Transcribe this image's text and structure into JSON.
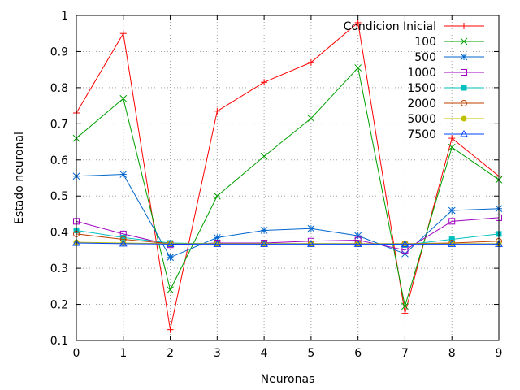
{
  "chart_data": {
    "type": "line",
    "xlabel": "Neuronas",
    "ylabel": "Estado neuronal",
    "x": [
      0,
      1,
      2,
      3,
      4,
      5,
      6,
      7,
      8,
      9
    ],
    "xlim": [
      0,
      9
    ],
    "ylim": [
      0.1,
      1
    ],
    "x_ticks": [
      0,
      1,
      2,
      3,
      4,
      5,
      6,
      7,
      8,
      9
    ],
    "y_ticks": [
      0.1,
      0.2,
      0.3,
      0.4,
      0.5,
      0.6,
      0.7,
      0.8,
      0.9,
      1
    ],
    "grid": true,
    "legend_position": "top-right",
    "series": [
      {
        "name": "Condicion Inicial",
        "color": "#ff0000",
        "marker": "plus",
        "values": [
          0.73,
          0.95,
          0.13,
          0.735,
          0.815,
          0.87,
          0.98,
          0.175,
          0.66,
          0.555
        ]
      },
      {
        "name": "100",
        "color": "#00a000",
        "marker": "cross",
        "values": [
          0.66,
          0.77,
          0.24,
          0.5,
          0.61,
          0.715,
          0.855,
          0.195,
          0.635,
          0.545
        ]
      },
      {
        "name": "500",
        "color": "#0066cc",
        "marker": "star",
        "values": [
          0.555,
          0.56,
          0.33,
          0.385,
          0.405,
          0.41,
          0.39,
          0.34,
          0.46,
          0.465
        ]
      },
      {
        "name": "1000",
        "color": "#a000c0",
        "marker": "square-open",
        "values": [
          0.43,
          0.395,
          0.365,
          0.37,
          0.37,
          0.375,
          0.378,
          0.35,
          0.43,
          0.44
        ]
      },
      {
        "name": "1500",
        "color": "#00c0c0",
        "marker": "square-filled",
        "values": [
          0.405,
          0.385,
          0.37,
          0.368,
          0.368,
          0.368,
          0.368,
          0.365,
          0.38,
          0.395
        ]
      },
      {
        "name": "2000",
        "color": "#c04000",
        "marker": "circle-open",
        "values": [
          0.395,
          0.38,
          0.368,
          0.368,
          0.368,
          0.368,
          0.368,
          0.368,
          0.37,
          0.375
        ]
      },
      {
        "name": "5000",
        "color": "#c0c000",
        "marker": "circle-filled",
        "values": [
          0.372,
          0.37,
          0.368,
          0.368,
          0.368,
          0.368,
          0.368,
          0.368,
          0.368,
          0.368
        ]
      },
      {
        "name": "7500",
        "color": "#0040ff",
        "marker": "triangle-open",
        "values": [
          0.37,
          0.368,
          0.367,
          0.367,
          0.367,
          0.367,
          0.367,
          0.367,
          0.367,
          0.367
        ]
      }
    ]
  }
}
